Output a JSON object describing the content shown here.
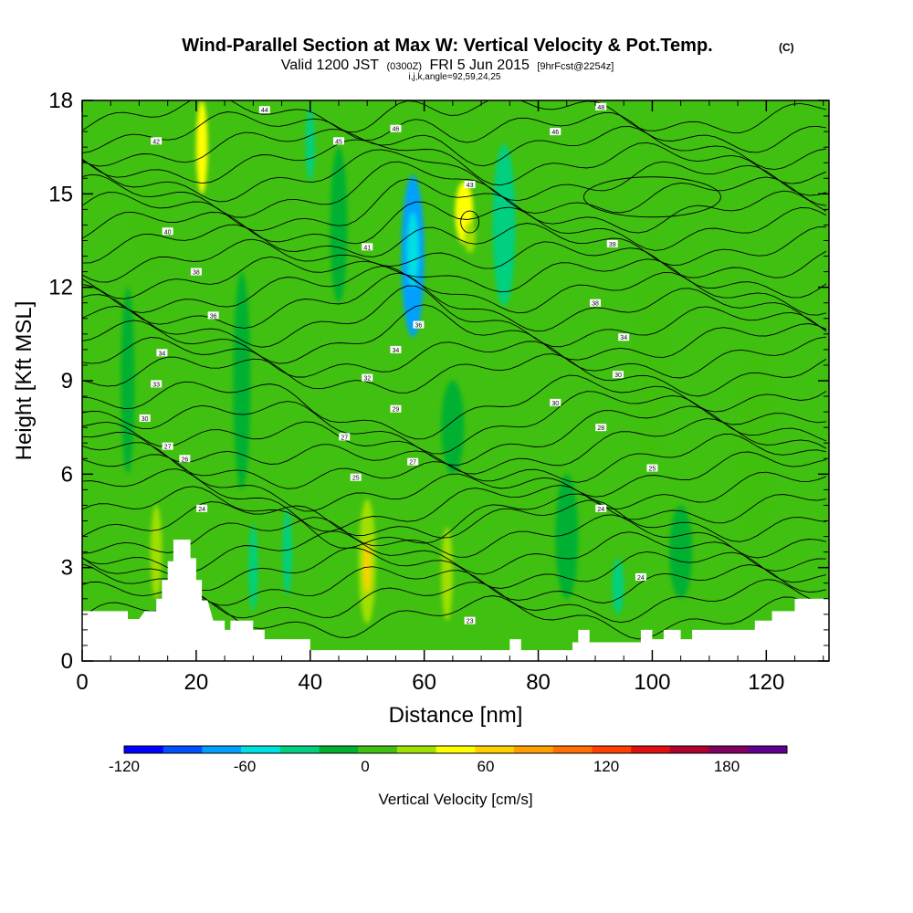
{
  "chart_data": {
    "type": "heatmap",
    "title": {
      "main": "Wind-Parallel Section at Max W: Vertical Velocity & Pot.Temp.",
      "units": "(C)",
      "valid_a": "Valid 1200 JST",
      "valid_b": "(0300Z)",
      "valid_c": "FRI 5 Jun 2015",
      "valid_d": "[9hrFcst@2254z]",
      "indices": "i,j,k,angle=92,59,24,25"
    },
    "xlabel": "Distance [nm]",
    "ylabel": "Height [Kft MSL]",
    "xlim": [
      0,
      131
    ],
    "ylim": [
      0,
      18
    ],
    "x_ticks": [
      0,
      20,
      40,
      60,
      80,
      100,
      120
    ],
    "x_tick_labels": [
      "0",
      "20",
      "40",
      "60",
      "80",
      "100",
      "120"
    ],
    "y_ticks": [
      0,
      3,
      6,
      9,
      12,
      15,
      18
    ],
    "y_tick_labels": [
      "0",
      "3",
      "6",
      "9",
      "12",
      "15",
      "18"
    ],
    "colorbar": {
      "label": "Vertical Velocity [cm/s]",
      "min": -120,
      "max": 210,
      "step": 20,
      "tick_values": [
        -120,
        -60,
        0,
        60,
        120,
        180
      ],
      "tick_labels": [
        "-120",
        "-60",
        "0",
        "60",
        "120",
        "180"
      ],
      "colors": [
        "#0000ff",
        "#0050ff",
        "#00a0ff",
        "#00e0e0",
        "#00d080",
        "#00b030",
        "#40c010",
        "#a0e000",
        "#ffff00",
        "#ffd000",
        "#ffa000",
        "#ff7000",
        "#ff4000",
        "#e01010",
        "#b00030",
        "#800060",
        "#600090"
      ]
    },
    "background_color": "#40c010",
    "velocity_features": [
      {
        "x": 58,
        "y": 13.0,
        "rx": 2.0,
        "ry": 2.6,
        "value": -80
      },
      {
        "x": 58,
        "y": 13.2,
        "rx": 1.0,
        "ry": 1.2,
        "value": -60
      },
      {
        "x": 74,
        "y": 14.0,
        "rx": 2.0,
        "ry": 2.6,
        "value": -40
      },
      {
        "x": 21,
        "y": 16.5,
        "rx": 1.0,
        "ry": 1.5,
        "value": 40
      },
      {
        "x": 67,
        "y": 14.4,
        "rx": 1.6,
        "ry": 1.0,
        "value": 40
      },
      {
        "x": 68,
        "y": 13.6,
        "rx": 1.0,
        "ry": 0.5,
        "value": 20
      },
      {
        "x": 50,
        "y": 3.2,
        "rx": 1.5,
        "ry": 2.0,
        "value": 30
      },
      {
        "x": 50,
        "y": 3.0,
        "rx": 0.6,
        "ry": 0.8,
        "value": 60
      },
      {
        "x": 64,
        "y": 2.8,
        "rx": 1.0,
        "ry": 1.5,
        "value": 30
      },
      {
        "x": 13,
        "y": 3.5,
        "rx": 1.0,
        "ry": 1.5,
        "value": 30
      },
      {
        "x": 30,
        "y": 3.0,
        "rx": 0.8,
        "ry": 1.4,
        "value": -40
      },
      {
        "x": 36,
        "y": 3.5,
        "rx": 0.8,
        "ry": 1.4,
        "value": -40
      },
      {
        "x": 94,
        "y": 2.4,
        "rx": 1.0,
        "ry": 0.9,
        "value": -40
      },
      {
        "x": 40,
        "y": 16.6,
        "rx": 0.8,
        "ry": 1.2,
        "value": -40
      },
      {
        "x": 12,
        "y": 14.0,
        "rx": 2.4,
        "ry": 1.3,
        "value": 10
      },
      {
        "x": 100,
        "y": 10.0,
        "rx": 2.5,
        "ry": 3.5,
        "value": 10
      },
      {
        "x": 118,
        "y": 7.0,
        "rx": 3.0,
        "ry": 3.0,
        "value": 10
      },
      {
        "x": 28,
        "y": 9.0,
        "rx": 1.5,
        "ry": 3.5,
        "value": -20
      },
      {
        "x": 85,
        "y": 4.0,
        "rx": 2.0,
        "ry": 2.0,
        "value": -20
      },
      {
        "x": 105,
        "y": 3.5,
        "rx": 2.0,
        "ry": 1.5,
        "value": -20
      },
      {
        "x": 45,
        "y": 14.0,
        "rx": 1.5,
        "ry": 2.5,
        "value": -20
      },
      {
        "x": 8,
        "y": 9.0,
        "rx": 1.2,
        "ry": 3.0,
        "value": -20
      },
      {
        "x": 65,
        "y": 7.5,
        "rx": 2.0,
        "ry": 1.5,
        "value": -20
      }
    ],
    "isentrope_labels": [
      {
        "x": 32,
        "y": 17.7,
        "text": "44"
      },
      {
        "x": 91,
        "y": 17.8,
        "text": "48"
      },
      {
        "x": 13,
        "y": 16.7,
        "text": "42"
      },
      {
        "x": 55,
        "y": 17.1,
        "text": "46"
      },
      {
        "x": 45,
        "y": 16.7,
        "text": "45"
      },
      {
        "x": 83,
        "y": 17.0,
        "text": "46"
      },
      {
        "x": 68,
        "y": 15.3,
        "text": "43"
      },
      {
        "x": 15,
        "y": 13.8,
        "text": "40"
      },
      {
        "x": 50,
        "y": 13.3,
        "text": "41"
      },
      {
        "x": 93,
        "y": 13.4,
        "text": "39"
      },
      {
        "x": 20,
        "y": 12.5,
        "text": "38"
      },
      {
        "x": 90,
        "y": 11.5,
        "text": "38"
      },
      {
        "x": 23,
        "y": 11.1,
        "text": "36"
      },
      {
        "x": 59,
        "y": 10.8,
        "text": "36"
      },
      {
        "x": 95,
        "y": 10.4,
        "text": "34"
      },
      {
        "x": 14,
        "y": 9.9,
        "text": "34"
      },
      {
        "x": 55,
        "y": 10.0,
        "text": "34"
      },
      {
        "x": 13,
        "y": 8.9,
        "text": "33"
      },
      {
        "x": 50,
        "y": 9.1,
        "text": "32"
      },
      {
        "x": 94,
        "y": 9.2,
        "text": "30"
      },
      {
        "x": 11,
        "y": 7.8,
        "text": "30"
      },
      {
        "x": 55,
        "y": 8.1,
        "text": "29"
      },
      {
        "x": 83,
        "y": 8.3,
        "text": "30"
      },
      {
        "x": 15,
        "y": 6.9,
        "text": "27"
      },
      {
        "x": 46,
        "y": 7.2,
        "text": "27"
      },
      {
        "x": 91,
        "y": 7.5,
        "text": "28"
      },
      {
        "x": 18,
        "y": 6.5,
        "text": "26"
      },
      {
        "x": 58,
        "y": 6.4,
        "text": "27"
      },
      {
        "x": 48,
        "y": 5.9,
        "text": "25"
      },
      {
        "x": 100,
        "y": 6.2,
        "text": "25"
      },
      {
        "x": 21,
        "y": 4.9,
        "text": "24"
      },
      {
        "x": 91,
        "y": 4.9,
        "text": "24"
      },
      {
        "x": 98,
        "y": 2.7,
        "text": "24"
      },
      {
        "x": 68,
        "y": 1.3,
        "text": "23"
      }
    ]
  }
}
